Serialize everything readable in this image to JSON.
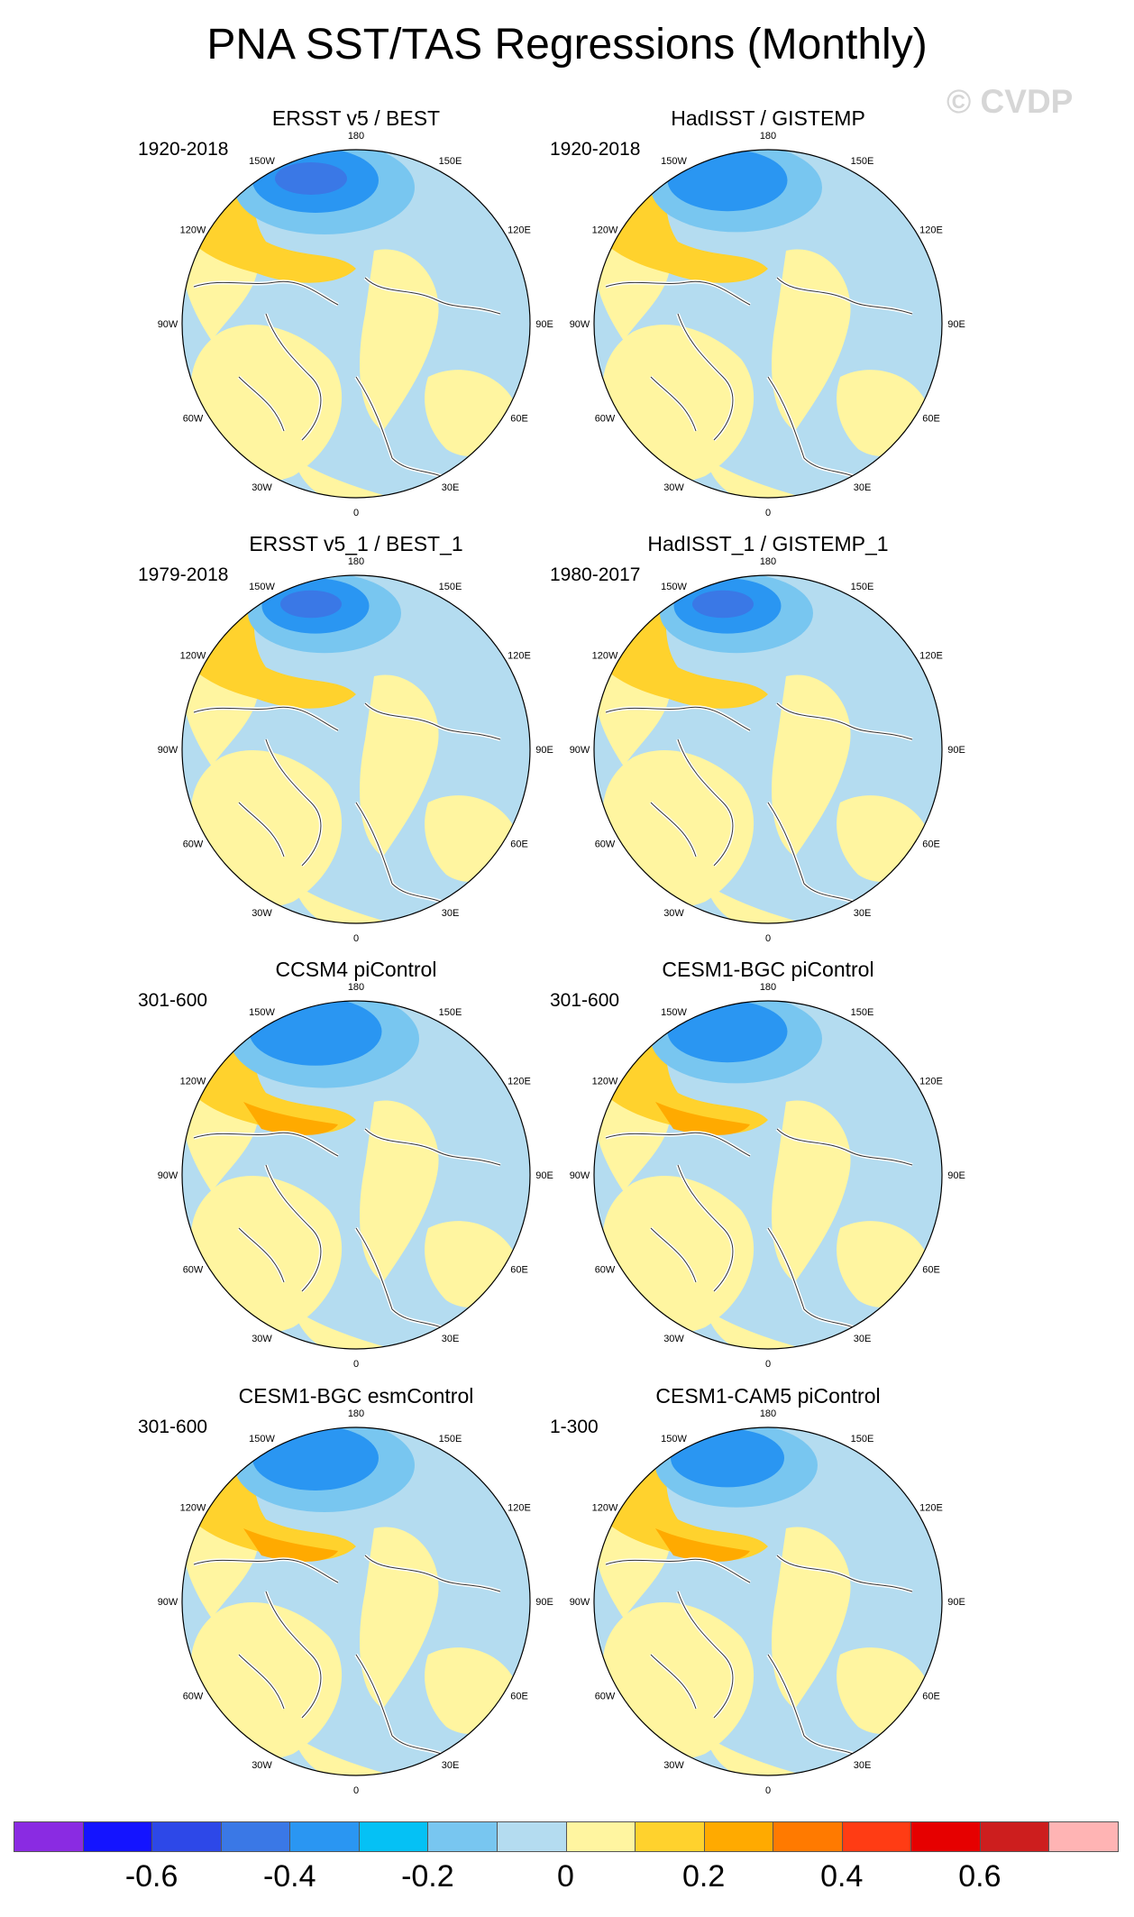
{
  "title": "PNA SST/TAS Regressions (Monthly)",
  "watermark": "© CVDP",
  "lon_labels": [
    "180",
    "150E",
    "120E",
    "90E",
    "60E",
    "30E",
    "0",
    "30W",
    "60W",
    "90W",
    "120W",
    "150W"
  ],
  "panels": [
    {
      "title": "ERSST v5 / BEST",
      "period": "1920-2018"
    },
    {
      "title": "HadISST / GISTEMP",
      "period": "1920-2018"
    },
    {
      "title": "ERSST v5_1 / BEST_1",
      "period": "1979-2018"
    },
    {
      "title": "HadISST_1 / GISTEMP_1",
      "period": "1980-2017"
    },
    {
      "title": "CCSM4 piControl",
      "period": "301-600"
    },
    {
      "title": "CESM1-BGC piControl",
      "period": "301-600"
    },
    {
      "title": "CESM1-BGC esmControl",
      "period": "301-600"
    },
    {
      "title": "CESM1-CAM5 piControl",
      "period": "1-300"
    }
  ],
  "colorbar": {
    "colors": [
      "#8a2be2",
      "#1414ff",
      "#2d48e8",
      "#3a78e6",
      "#2a96f2",
      "#05c1f5",
      "#78c6f0",
      "#b4dcf0",
      "#fff5a0",
      "#ffd22d",
      "#ffaa00",
      "#ff7a00",
      "#ff3c14",
      "#e60000",
      "#cd1e1e",
      "#ffb4b4"
    ],
    "labels": [
      "-0.6",
      "-0.4",
      "-0.2",
      "0",
      "0.2",
      "0.4",
      "0.6"
    ]
  }
}
